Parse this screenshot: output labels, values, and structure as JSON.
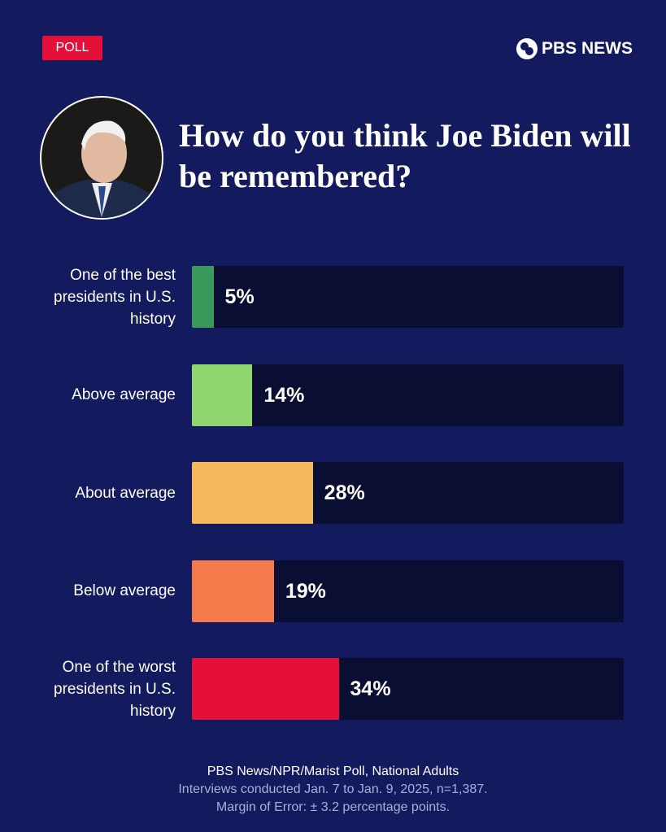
{
  "badge": "POLL",
  "logo": "PBS NEWS",
  "chart_data": {
    "type": "bar",
    "orientation": "horizontal",
    "title": "How do you think Joe Biden will be remembered?",
    "categories": [
      "One of the best presidents in U.S. history",
      "Above average",
      "About average",
      "Below average",
      "One of the worst presidents in U.S. history"
    ],
    "values": [
      5,
      14,
      28,
      19,
      34
    ],
    "value_labels": [
      "5%",
      "14%",
      "28%",
      "19%",
      "34%"
    ],
    "colors": [
      "#3a9a5c",
      "#8ed66d",
      "#f5b85a",
      "#f47a4c",
      "#e4103a"
    ],
    "xlim": [
      0,
      100
    ]
  },
  "source": "PBS News/NPR/Marist Poll, National Adults",
  "notes": [
    "Interviews conducted Jan. 7 to Jan. 9, 2025, n=1,387.",
    "Margin of Error: ± 3.2 percentage points."
  ]
}
